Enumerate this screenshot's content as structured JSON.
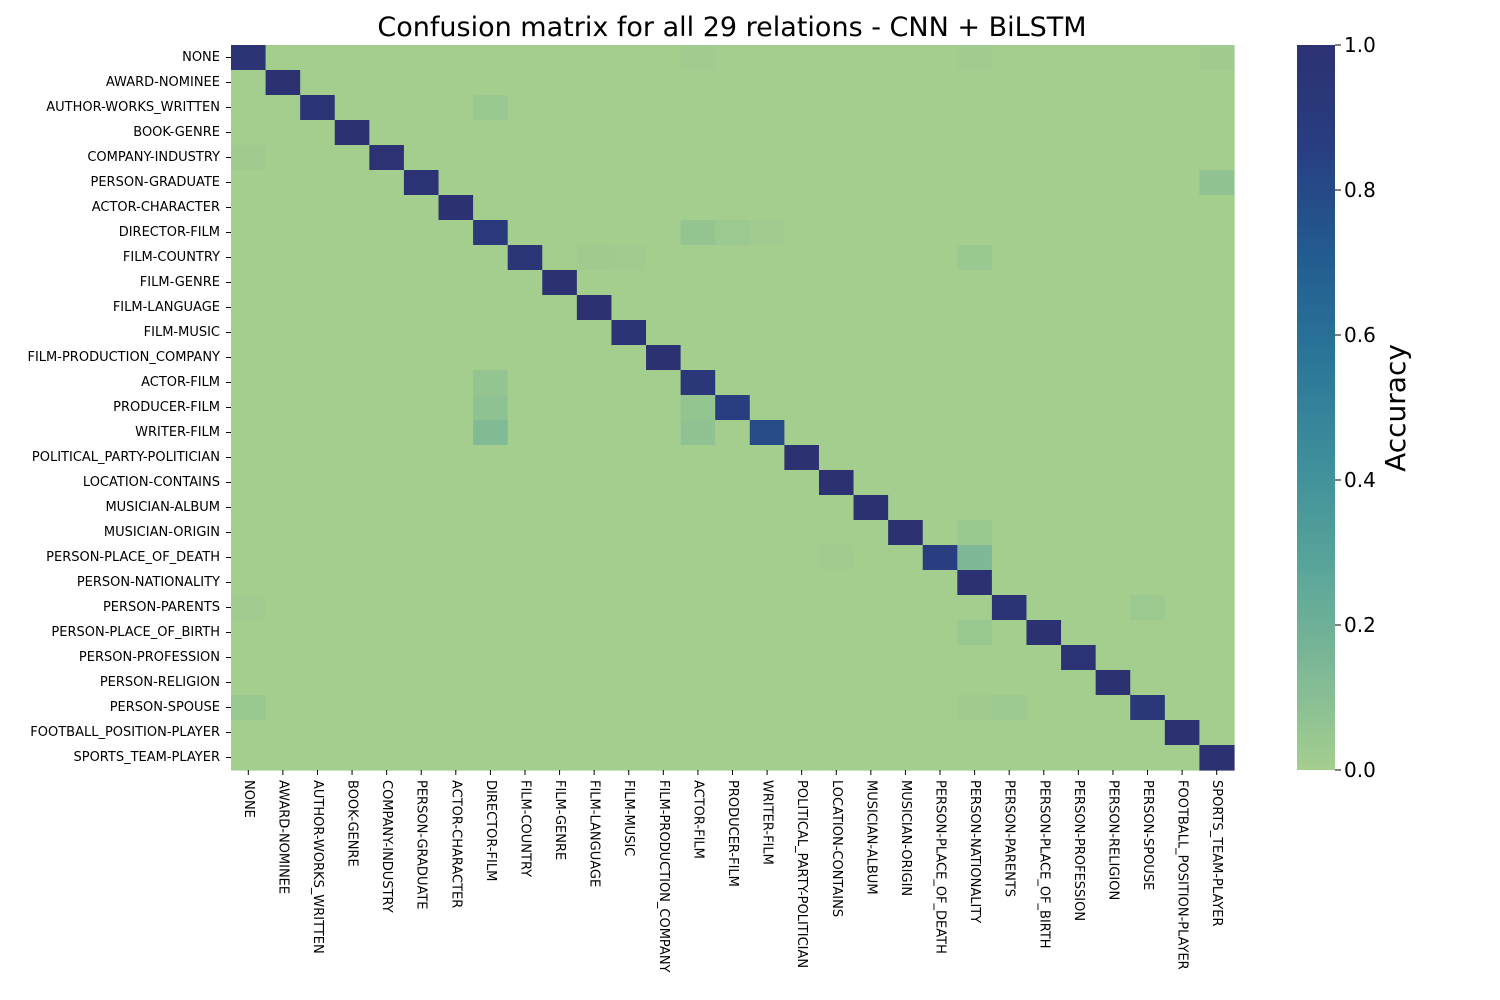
{
  "chart_data": {
    "type": "heatmap",
    "title": "Confusion matrix for all 29 relations - CNN + BiLSTM",
    "rows": [
      "NONE",
      "AWARD-NOMINEE",
      "AUTHOR-WORKS_WRITTEN",
      "BOOK-GENRE",
      "COMPANY-INDUSTRY",
      "PERSON-GRADUATE",
      "ACTOR-CHARACTER",
      "DIRECTOR-FILM",
      "FILM-COUNTRY",
      "FILM-GENRE",
      "FILM-LANGUAGE",
      "FILM-MUSIC",
      "FILM-PRODUCTION_COMPANY",
      "ACTOR-FILM",
      "PRODUCER-FILM",
      "WRITER-FILM",
      "POLITICAL_PARTY-POLITICIAN",
      "LOCATION-CONTAINS",
      "MUSICIAN-ALBUM",
      "MUSICIAN-ORIGIN",
      "PERSON-PLACE_OF_DEATH",
      "PERSON-NATIONALITY",
      "PERSON-PARENTS",
      "PERSON-PLACE_OF_BIRTH",
      "PERSON-PROFESSION",
      "PERSON-RELIGION",
      "PERSON-SPOUSE",
      "FOOTBALL_POSITION-PLAYER",
      "SPORTS_TEAM-PLAYER"
    ],
    "columns": [
      "NONE",
      "AWARD-NOMINEE",
      "AUTHOR-WORKS_WRITTEN",
      "BOOK-GENRE",
      "COMPANY-INDUSTRY",
      "PERSON-GRADUATE",
      "ACTOR-CHARACTER",
      "DIRECTOR-FILM",
      "FILM-COUNTRY",
      "FILM-GENRE",
      "FILM-LANGUAGE",
      "FILM-MUSIC",
      "FILM-PRODUCTION_COMPANY",
      "ACTOR-FILM",
      "PRODUCER-FILM",
      "WRITER-FILM",
      "POLITICAL_PARTY-POLITICIAN",
      "LOCATION-CONTAINS",
      "MUSICIAN-ALBUM",
      "MUSICIAN-ORIGIN",
      "PERSON-PLACE_OF_DEATH",
      "PERSON-NATIONALITY",
      "PERSON-PARENTS",
      "PERSON-PLACE_OF_BIRTH",
      "PERSON-PROFESSION",
      "PERSON-RELIGION",
      "PERSON-SPOUSE",
      "FOOTBALL_POSITION-PLAYER",
      "SPORTS_TEAM-PLAYER"
    ],
    "diagonal": [
      0.97,
      1.0,
      0.96,
      1.0,
      0.99,
      0.98,
      1.0,
      0.91,
      0.95,
      1.0,
      1.0,
      0.97,
      1.0,
      0.92,
      0.86,
      0.79,
      1.0,
      1.0,
      1.0,
      1.0,
      0.86,
      1.0,
      0.98,
      1.0,
      0.98,
      1.0,
      0.93,
      1.0,
      1.0
    ],
    "off_diagonal": [
      {
        "row": 0,
        "col": 28,
        "value": 0.02
      },
      {
        "row": 0,
        "col": 13,
        "value": 0.01
      },
      {
        "row": 0,
        "col": 21,
        "value": 0.01
      },
      {
        "row": 2,
        "col": 7,
        "value": 0.04
      },
      {
        "row": 4,
        "col": 0,
        "value": 0.02
      },
      {
        "row": 5,
        "col": 28,
        "value": 0.07
      },
      {
        "row": 7,
        "col": 13,
        "value": 0.06
      },
      {
        "row": 7,
        "col": 14,
        "value": 0.03
      },
      {
        "row": 7,
        "col": 15,
        "value": 0.01
      },
      {
        "row": 8,
        "col": 10,
        "value": 0.02
      },
      {
        "row": 8,
        "col": 21,
        "value": 0.04
      },
      {
        "row": 8,
        "col": 11,
        "value": 0.01
      },
      {
        "row": 13,
        "col": 7,
        "value": 0.06
      },
      {
        "row": 14,
        "col": 7,
        "value": 0.08
      },
      {
        "row": 14,
        "col": 13,
        "value": 0.06
      },
      {
        "row": 15,
        "col": 7,
        "value": 0.13
      },
      {
        "row": 15,
        "col": 13,
        "value": 0.07
      },
      {
        "row": 19,
        "col": 21,
        "value": 0.04
      },
      {
        "row": 20,
        "col": 21,
        "value": 0.14
      },
      {
        "row": 20,
        "col": 17,
        "value": 0.01
      },
      {
        "row": 22,
        "col": 26,
        "value": 0.03
      },
      {
        "row": 22,
        "col": 0,
        "value": 0.01
      },
      {
        "row": 23,
        "col": 21,
        "value": 0.04
      },
      {
        "row": 26,
        "col": 0,
        "value": 0.04
      },
      {
        "row": 26,
        "col": 22,
        "value": 0.03
      },
      {
        "row": 26,
        "col": 21,
        "value": 0.02
      }
    ],
    "colorbar": {
      "label": "Accuracy",
      "ticks": [
        "0.0",
        "0.2",
        "0.4",
        "0.6",
        "0.8",
        "1.0"
      ],
      "range": [
        0,
        1
      ]
    },
    "colormap": [
      "#a4ce8e",
      "#7db896",
      "#58a49a",
      "#3d8e9b",
      "#2a7598",
      "#235b90",
      "#283e81",
      "#2c3172"
    ],
    "grid": false,
    "xlabel": "",
    "ylabel": ""
  }
}
